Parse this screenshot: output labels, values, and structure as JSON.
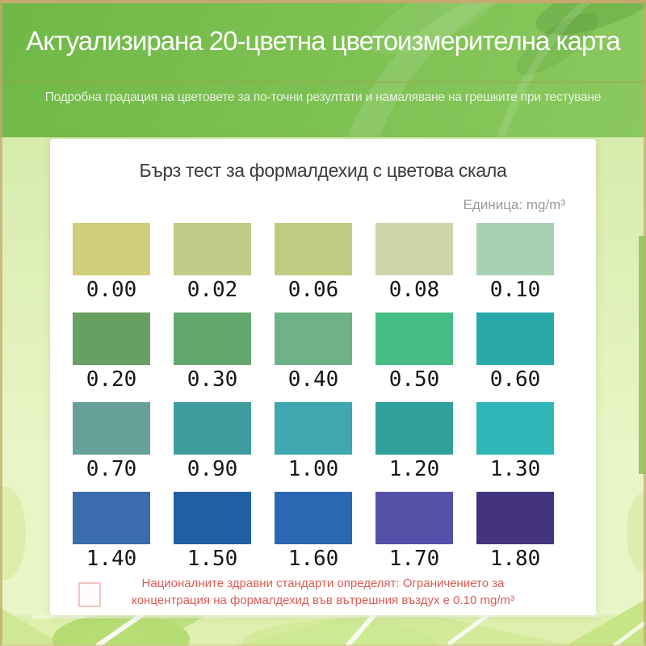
{
  "header": {
    "title": "Актуализирана 20-цветна цветоизмерителна карта",
    "subtitle": "Подробна градация на цветовете за по-точни резултати и намаляване на грешките при тестуване"
  },
  "card": {
    "title": "Бърз тест за формалдехид с цветова скала",
    "unit_label": "Единица: mg/m³",
    "note_line1": "Националните здравни стандарти определят: Ограничението за",
    "note_line2": "концентрация на формалдехид във вътрешния въздух е 0.10 mg/m³"
  },
  "colors": {
    "banner-from": "#6fb847",
    "banner-to": "#8bc95e",
    "page-bg-top": "#cfe7a2",
    "page-bg-bottom": "#e9f5c6",
    "note-color": "#dd5b54",
    "frame-color": "#c6a96e",
    "unit-color": "#999999",
    "card-title-color": "#3b3b3b",
    "value-color": "#161616"
  },
  "chart_data": {
    "type": "table",
    "title": "Бърз тест за формалдехид с цветова скала",
    "unit": "mg/m³",
    "columns_per_row": 5,
    "note": "Националните здравни стандарти определят: Ограничението за концентрация на формалдехид във вътрешния въздух е 0.10 mg/m³",
    "swatches": [
      {
        "value": "0.00",
        "color": "#d2cd7b"
      },
      {
        "value": "0.02",
        "color": "#c2cc88"
      },
      {
        "value": "0.06",
        "color": "#c2cb82"
      },
      {
        "value": "0.08",
        "color": "#cdd5aa"
      },
      {
        "value": "0.10",
        "color": "#a8d1b2"
      },
      {
        "value": "0.20",
        "color": "#68a061"
      },
      {
        "value": "0.30",
        "color": "#62a86d"
      },
      {
        "value": "0.40",
        "color": "#6fb287"
      },
      {
        "value": "0.50",
        "color": "#45bd83"
      },
      {
        "value": "0.60",
        "color": "#2aa9ab"
      },
      {
        "value": "0.70",
        "color": "#67a199"
      },
      {
        "value": "0.90",
        "color": "#3f9d9d"
      },
      {
        "value": "1.00",
        "color": "#3fa7af"
      },
      {
        "value": "1.20",
        "color": "#2f9f99"
      },
      {
        "value": "1.30",
        "color": "#2fb6b6"
      },
      {
        "value": "1.40",
        "color": "#3a6cae"
      },
      {
        "value": "1.50",
        "color": "#2160a3"
      },
      {
        "value": "1.60",
        "color": "#2a68b3"
      },
      {
        "value": "1.70",
        "color": "#5650a8"
      },
      {
        "value": "1.80",
        "color": "#44337f"
      }
    ]
  }
}
